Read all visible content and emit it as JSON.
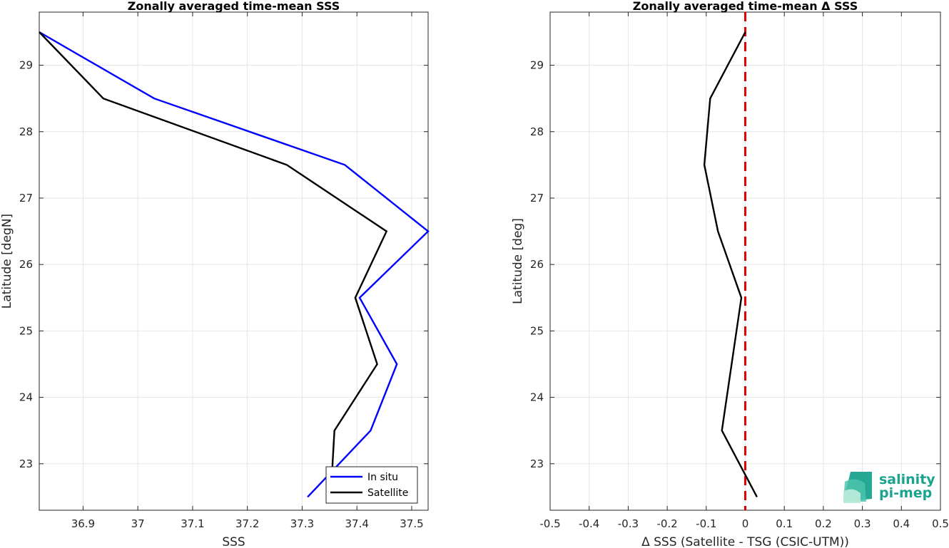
{
  "chart_data": [
    {
      "type": "line",
      "title": "Zonally averaged time-mean SSS",
      "xlabel": "SSS",
      "ylabel": "Latitude [degN]",
      "xlim": [
        36.82,
        37.53
      ],
      "ylim": [
        22.3,
        29.8
      ],
      "xticks": [
        36.9,
        37,
        37.1,
        37.2,
        37.3,
        37.4,
        37.5
      ],
      "xtick_labels": [
        "36.9",
        "37",
        "37.1",
        "37.2",
        "37.3",
        "37.4",
        "37.5"
      ],
      "yticks": [
        23,
        24,
        25,
        26,
        27,
        28,
        29
      ],
      "ytick_labels": [
        "23",
        "24",
        "25",
        "26",
        "27",
        "28",
        "29"
      ],
      "grid": true,
      "legend_position": "bottom-right",
      "series": [
        {
          "name": "In situ",
          "color": "#0000ff",
          "x": [
            37.31,
            37.425,
            37.473,
            37.405,
            37.53,
            37.378,
            37.03,
            36.82
          ],
          "y": [
            22.5,
            23.5,
            24.5,
            25.5,
            26.5,
            27.5,
            28.5,
            29.5
          ]
        },
        {
          "name": "Satellite",
          "color": "#000000",
          "x": [
            37.352,
            37.359,
            37.437,
            37.397,
            37.454,
            37.272,
            36.937,
            36.82
          ],
          "y": [
            22.5,
            23.5,
            24.5,
            25.5,
            26.5,
            27.5,
            28.5,
            29.5
          ]
        }
      ]
    },
    {
      "type": "line",
      "title": "Zonally averaged time-mean Δ SSS",
      "xlabel": "Δ SSS (Satellite - TSG (CSIC-UTM))",
      "ylabel": "Latitude [deg]",
      "xlim": [
        -0.5,
        0.5
      ],
      "ylim": [
        22.3,
        29.8
      ],
      "xticks": [
        -0.5,
        -0.4,
        -0.3,
        -0.2,
        -0.1,
        0,
        0.1,
        0.2,
        0.3,
        0.4,
        0.5
      ],
      "xtick_labels": [
        "-0.5",
        "-0.4",
        "-0.3",
        "-0.2",
        "-0.1",
        "0",
        "0.1",
        "0.2",
        "0.3",
        "0.4",
        "0.5"
      ],
      "yticks": [
        23,
        24,
        25,
        26,
        27,
        28,
        29
      ],
      "ytick_labels": [
        "23",
        "24",
        "25",
        "26",
        "27",
        "28",
        "29"
      ],
      "grid": true,
      "series": [
        {
          "color": "#000000",
          "x": [
            0.03,
            -0.06,
            -0.01,
            -0.07,
            -0.105,
            -0.09,
            0
          ],
          "y": [
            22.5,
            23.5,
            25.5,
            26.5,
            27.5,
            28.5,
            29.5
          ]
        }
      ],
      "reference_line": {
        "x": 0,
        "color": "#e00000",
        "style": "dashed"
      }
    }
  ],
  "logo": {
    "line1": "salinity",
    "line2": "pi-mep",
    "color": "#1aa38f"
  }
}
